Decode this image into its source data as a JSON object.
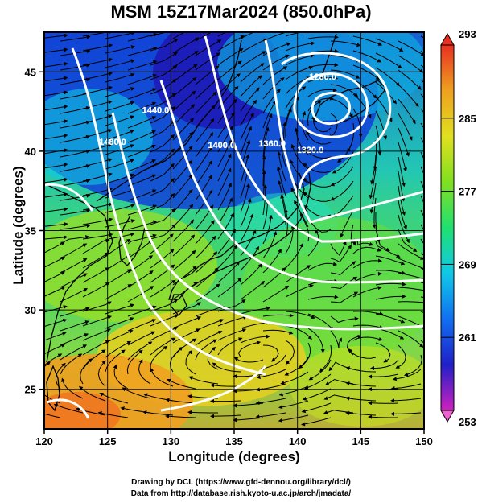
{
  "title": "MSM 15Z17Mar2024 (850.0hPa)",
  "xlabel": "Longitude (degrees)",
  "ylabel": "Latitude  (degrees)",
  "credits": [
    "Drawing by DCL (https://www.gfd-dennou.org/library/dcl/)",
    "Data from http://database.rish.kyoto-u.ac.jp/arch/jmadata/"
  ],
  "chart_data": {
    "type": "heatmap",
    "variables": [
      "temperature (shaded)",
      "geopotential height (contours)",
      "wind (streamlines)"
    ],
    "xlim": [
      120,
      150
    ],
    "ylim": [
      22.5,
      47.5
    ],
    "x_ticks": [
      "120",
      "125",
      "130",
      "135",
      "140",
      "145",
      "150"
    ],
    "y_ticks": [
      "25",
      "30",
      "35",
      "40",
      "45"
    ],
    "colorbar": {
      "range": [
        253,
        293
      ],
      "tick_labels": [
        "293",
        "285",
        "277",
        "269",
        "261",
        "253"
      ],
      "colors": [
        "#d020c0",
        "#2020c8",
        "#1070f0",
        "#10c8e8",
        "#20e070",
        "#80e020",
        "#e0e020",
        "#f0a020",
        "#e83020"
      ]
    },
    "contour_labels": [
      {
        "text": "1280.0",
        "lon": 142.0,
        "lat": 44.5
      },
      {
        "text": "1320.0",
        "lon": 141.0,
        "lat": 39.9
      },
      {
        "text": "1360.0",
        "lon": 138.0,
        "lat": 40.3
      },
      {
        "text": "1400.0",
        "lon": 134.0,
        "lat": 40.2
      },
      {
        "text": "1440.0",
        "lon": 128.8,
        "lat": 42.4
      },
      {
        "text": "1480.0",
        "lon": 125.4,
        "lat": 40.4
      }
    ]
  }
}
